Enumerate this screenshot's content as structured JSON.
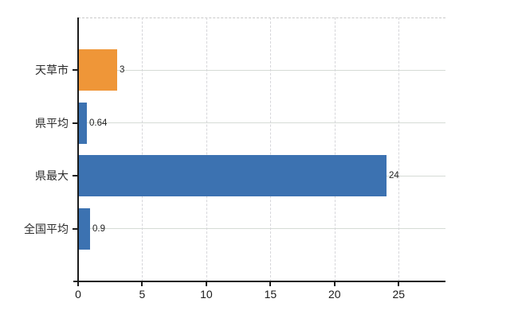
{
  "chart_data": {
    "type": "bar",
    "orientation": "horizontal",
    "title": "",
    "xlabel": "",
    "ylabel": "",
    "categories": [
      "天草市",
      "県平均",
      "県最大",
      "全国平均"
    ],
    "values": [
      3,
      0.64,
      24,
      0.9
    ],
    "value_labels": [
      "3",
      "0.64",
      "24",
      "0.9"
    ],
    "bar_colors": [
      "#ef9638",
      "#3c72b1",
      "#3c72b1",
      "#3c72b1"
    ],
    "xlim": [
      0,
      28.65
    ],
    "x_ticks": [
      0,
      5,
      10,
      15,
      20,
      25
    ],
    "x_tick_labels": [
      "0",
      "5",
      "10",
      "15",
      "20",
      "25"
    ],
    "grid": true,
    "legend": false
  },
  "colors": {
    "accent_orange": "#ef9638",
    "accent_blue": "#3c72b1",
    "axis": "#1a1a1a",
    "grid_horizontal": "#d5dbd5",
    "grid_vertical": "#d6d6da",
    "background": "#ffffff"
  }
}
